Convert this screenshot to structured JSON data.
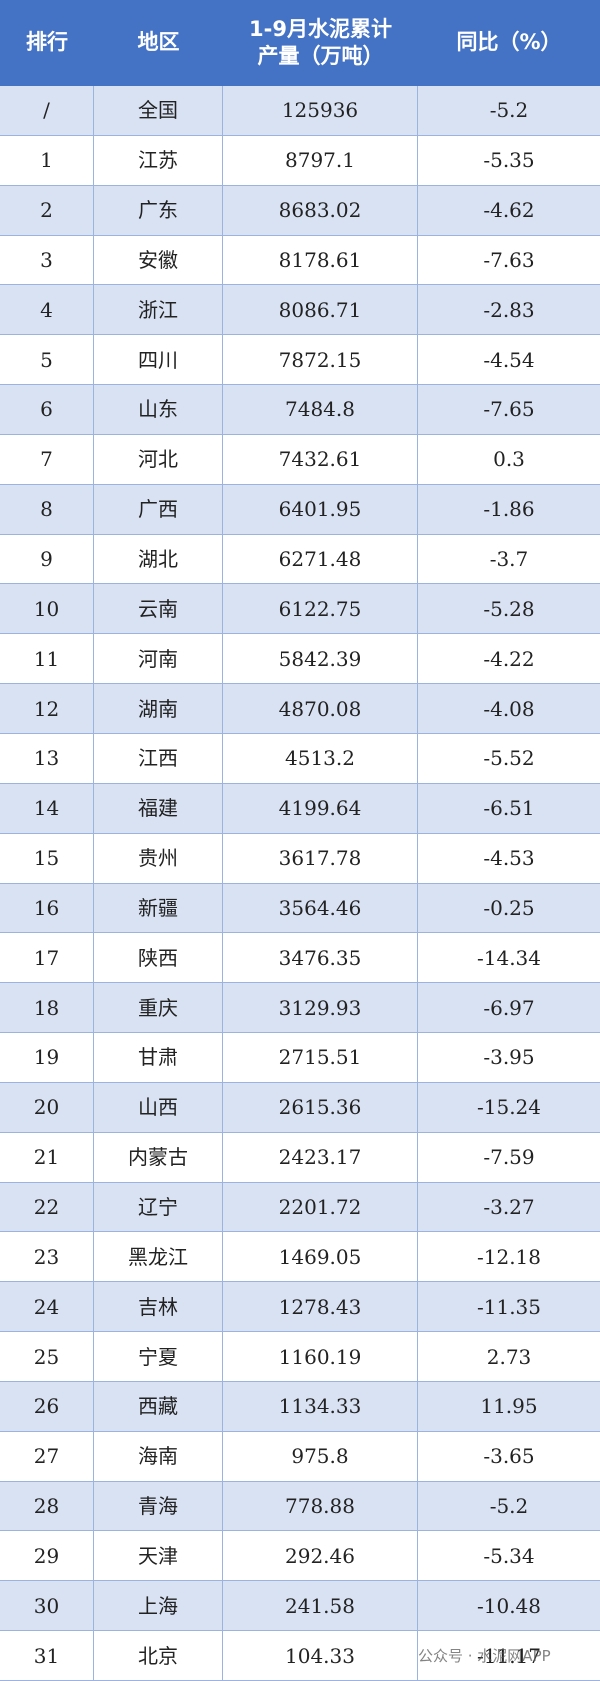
{
  "table": {
    "header": [
      "排行",
      "地区",
      [
        "1-9月水泥累计",
        "产量（万吨）"
      ],
      "同比（%）"
    ],
    "rows": [
      [
        "/",
        "全国",
        "125936",
        "-5.2"
      ],
      [
        "1",
        "江苏",
        "8797.1",
        "-5.35"
      ],
      [
        "2",
        "广东",
        "8683.02",
        "-4.62"
      ],
      [
        "3",
        "安徽",
        "8178.61",
        "-7.63"
      ],
      [
        "4",
        "浙江",
        "8086.71",
        "-2.83"
      ],
      [
        "5",
        "四川",
        "7872.15",
        "-4.54"
      ],
      [
        "6",
        "山东",
        "7484.8",
        "-7.65"
      ],
      [
        "7",
        "河北",
        "7432.61",
        "0.3"
      ],
      [
        "8",
        "广西",
        "6401.95",
        "-1.86"
      ],
      [
        "9",
        "湖北",
        "6271.48",
        "-3.7"
      ],
      [
        "10",
        "云南",
        "6122.75",
        "-5.28"
      ],
      [
        "11",
        "河南",
        "5842.39",
        "-4.22"
      ],
      [
        "12",
        "湖南",
        "4870.08",
        "-4.08"
      ],
      [
        "13",
        "江西",
        "4513.2",
        "-5.52"
      ],
      [
        "14",
        "福建",
        "4199.64",
        "-6.51"
      ],
      [
        "15",
        "贵州",
        "3617.78",
        "-4.53"
      ],
      [
        "16",
        "新疆",
        "3564.46",
        "-0.25"
      ],
      [
        "17",
        "陕西",
        "3476.35",
        "-14.34"
      ],
      [
        "18",
        "重庆",
        "3129.93",
        "-6.97"
      ],
      [
        "19",
        "甘肃",
        "2715.51",
        "-3.95"
      ],
      [
        "20",
        "山西",
        "2615.36",
        "-15.24"
      ],
      [
        "21",
        "内蒙古",
        "2423.17",
        "-7.59"
      ],
      [
        "22",
        "辽宁",
        "2201.72",
        "-3.27"
      ],
      [
        "23",
        "黑龙江",
        "1469.05",
        "-12.18"
      ],
      [
        "24",
        "吉林",
        "1278.43",
        "-11.35"
      ],
      [
        "25",
        "宁夏",
        "1160.19",
        "2.73"
      ],
      [
        "26",
        "西藏",
        "1134.33",
        "11.95"
      ],
      [
        "27",
        "海南",
        "975.8",
        "-3.65"
      ],
      [
        "28",
        "青海",
        "778.88",
        "-5.2"
      ],
      [
        "29",
        "天津",
        "292.46",
        "-5.34"
      ],
      [
        "30",
        "上海",
        "241.58",
        "-10.48"
      ],
      [
        "31",
        "北京",
        "104.33",
        "-11.17"
      ]
    ]
  },
  "watermark": "公众号 · 水泥网APP"
}
